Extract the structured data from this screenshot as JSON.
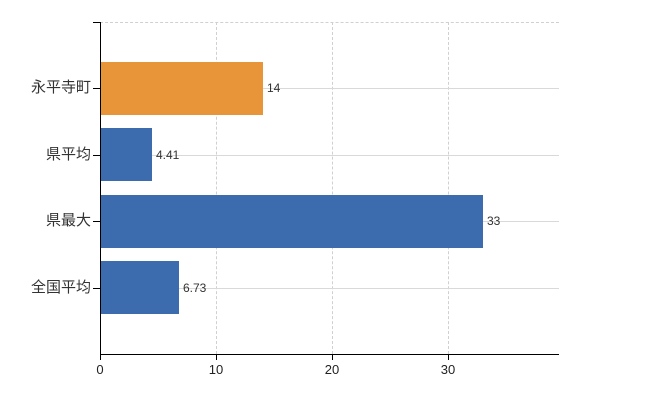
{
  "chart_data": {
    "type": "bar",
    "orientation": "horizontal",
    "title": "",
    "xlabel": "",
    "ylabel": "",
    "categories": [
      "永平寺町",
      "県平均",
      "県最大",
      "全国平均"
    ],
    "values": [
      14,
      4.41,
      33,
      6.73
    ],
    "value_labels": [
      "14",
      "4.41",
      "33",
      "6.73"
    ],
    "bar_colors": [
      "#E89539",
      "#3C6CAE",
      "#3C6CAE",
      "#3C6CAE"
    ],
    "x_ticks": [
      0,
      10,
      20,
      30
    ],
    "x_tick_labels": [
      "0",
      "10",
      "20",
      "30"
    ],
    "xlim": [
      0,
      39.6
    ],
    "grid": {
      "vertical_gridlines": "dashed, at x ticks 10/20/30, plus dashed top plot border",
      "horizontal_gridlines": "solid, at each category center, behind bars"
    },
    "legend": "none"
  },
  "colors": {
    "bar_orange": "#E89539",
    "bar_blue": "#3C6CAE",
    "gridline": "#D9D9D9",
    "gridline_dashed": "#D0D0D0",
    "axis": "#000000",
    "category_label_text": "#333333",
    "value_label_text": "#333333",
    "tick_label_text": "#222222",
    "background": "#FFFFFF"
  }
}
